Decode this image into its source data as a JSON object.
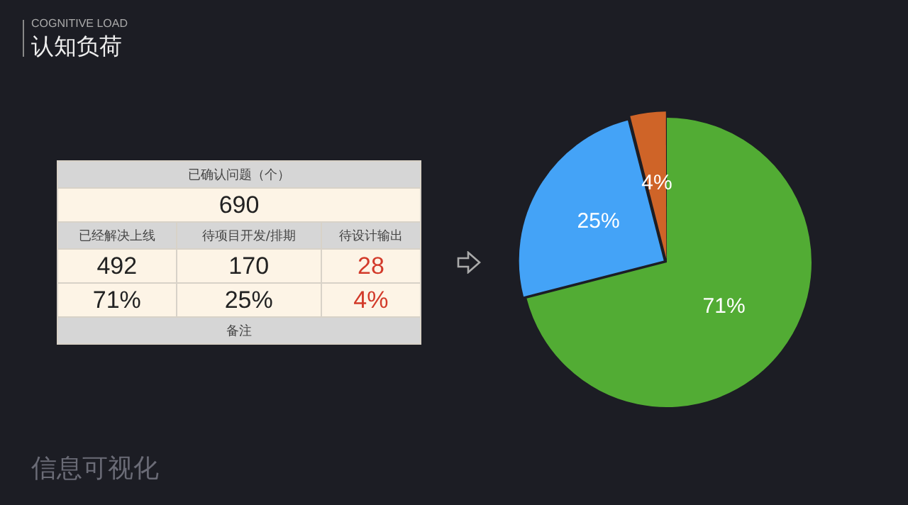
{
  "chart_data": {
    "type": "pie",
    "title": "认知负荷",
    "subtitle": "COGNITIVE LOAD",
    "categories": [
      null,
      null,
      null
    ],
    "values": [
      71,
      25,
      4
    ],
    "value_labels": [
      "71%",
      "25%",
      "4%"
    ],
    "colors": [
      "#52ac34",
      "#44a3f7",
      "#cf6428"
    ],
    "annotations": [
      "已确认问题（个）",
      "690",
      "已经解决上线",
      "待项目开发/排期",
      "待设计输出",
      "492",
      "170",
      "28",
      "备注",
      "信息可视化"
    ],
    "legend": false
  }
}
